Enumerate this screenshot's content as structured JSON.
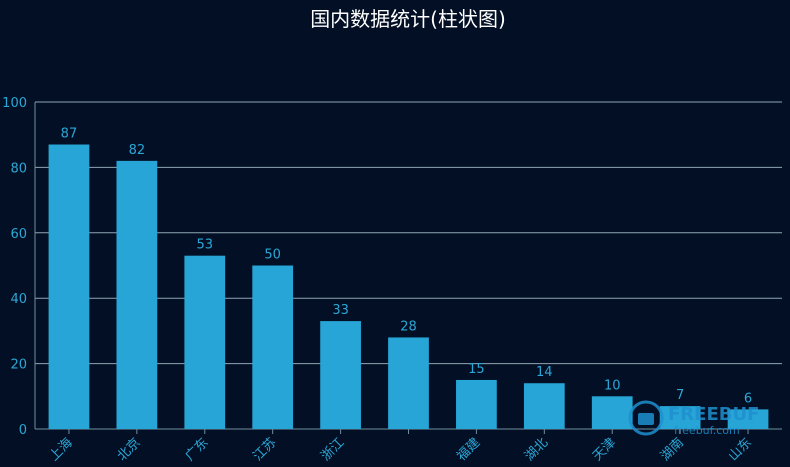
{
  "chart_data": {
    "type": "bar",
    "title": "国内数据统计(柱状图)",
    "categories": [
      "上海",
      "北京",
      "广东",
      "江苏",
      "浙江",
      "",
      "福建",
      "湖北",
      "天津",
      "湖南",
      "山东"
    ],
    "values": [
      87,
      82,
      53,
      50,
      33,
      28,
      15,
      14,
      10,
      7,
      6
    ],
    "ylim": [
      0,
      100
    ],
    "yticks": [
      0,
      20,
      40,
      60,
      80,
      100
    ],
    "grid": true,
    "data_labels": true,
    "colors": {
      "background": "#030f24",
      "bar": "#26a5d6",
      "text": "#2aa7d6",
      "title": "#ffffff"
    }
  },
  "watermark": {
    "text": "FREEBUF",
    "sub": "freebuf.com"
  }
}
